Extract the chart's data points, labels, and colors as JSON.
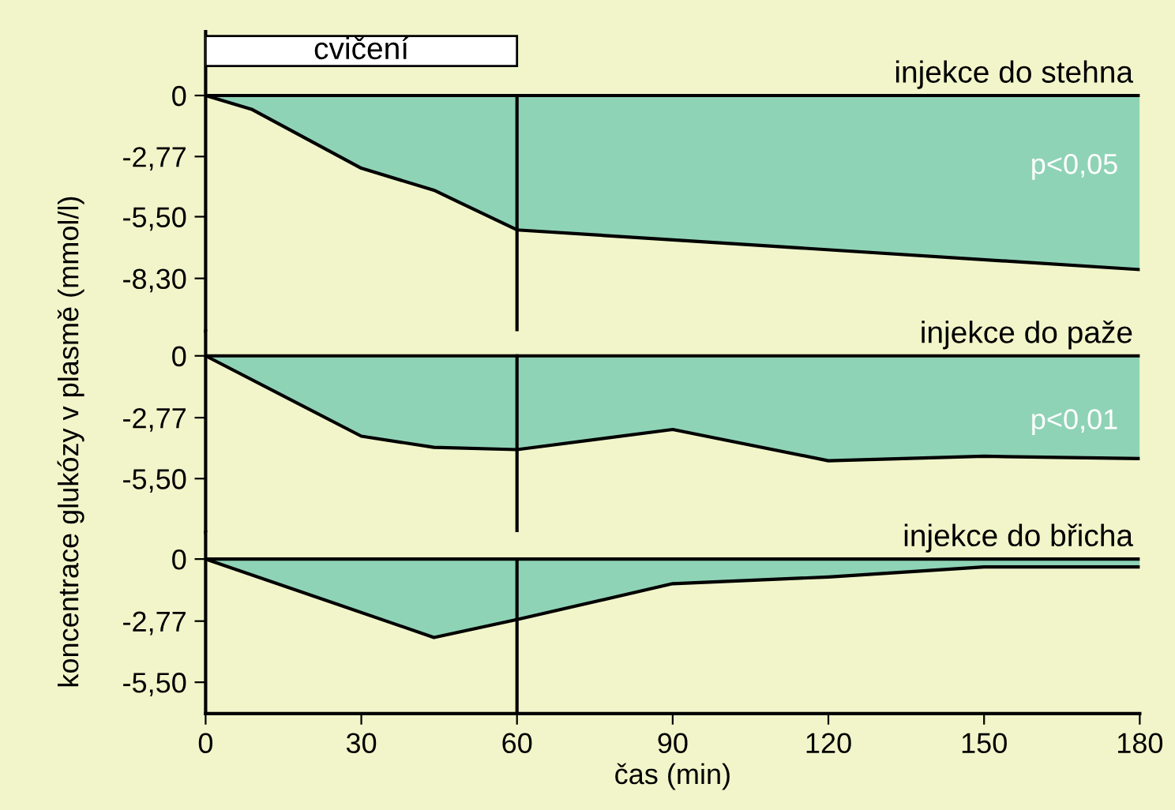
{
  "chart_data": [
    {
      "type": "area",
      "title": "injekce do stehna",
      "x": [
        0,
        9,
        30,
        44,
        60,
        180
      ],
      "series": [
        {
          "color": "#8fd3b6",
          "values": [
            0,
            -0.64,
            -3.3,
            -4.3,
            -6.1,
            -7.9
          ]
        }
      ],
      "xlim": [
        0,
        180
      ],
      "xticks": [
        0,
        30,
        60,
        90,
        120,
        150,
        180
      ],
      "ylim": [
        -10.7,
        2.9
      ],
      "yticks": [
        {
          "value": 0,
          "label": "0"
        },
        {
          "value": -2.77,
          "label": "-2,77"
        },
        {
          "value": -5.5,
          "label": "-5,50"
        },
        {
          "value": -8.3,
          "label": "-8,30"
        }
      ],
      "tick_labels": "y",
      "annotations": [
        "p<0,05"
      ],
      "bands": [
        {
          "axis": "x",
          "from": 0,
          "to": 60,
          "label": "cvičení",
          "color": "#ffffff"
        }
      ],
      "ref_lines": [
        {
          "axis": "x",
          "value": 60
        },
        {
          "axis": "y",
          "value": 0
        }
      ]
    },
    {
      "type": "area",
      "title": "injekce do paže",
      "ylabel": "koncentrace glukózy v plasmě (mmol/l)",
      "x": [
        0,
        30,
        44,
        60,
        90,
        120,
        150,
        180
      ],
      "series": [
        {
          "color": "#8fd3b6",
          "values": [
            0,
            -3.6,
            -4.1,
            -4.2,
            -3.3,
            -4.7,
            -4.5,
            -4.6
          ]
        }
      ],
      "xlim": [
        0,
        180
      ],
      "xticks": [
        0,
        30,
        60,
        90,
        120,
        150,
        180
      ],
      "ylim": [
        -7.9,
        1.1
      ],
      "yticks": [
        {
          "value": 0,
          "label": "0"
        },
        {
          "value": -2.77,
          "label": "-2,77"
        },
        {
          "value": -5.5,
          "label": "-5,50"
        }
      ],
      "tick_labels": "y",
      "annotations": [
        "p<0,01"
      ],
      "ref_lines": [
        {
          "axis": "x",
          "value": 60
        },
        {
          "axis": "y",
          "value": 0
        }
      ]
    },
    {
      "type": "area",
      "title": "injekce do břicha",
      "xlabel": "čas (min)",
      "x": [
        0,
        44,
        60,
        90,
        120,
        150,
        180
      ],
      "series": [
        {
          "color": "#8fd3b6",
          "values": [
            0,
            -3.5,
            -2.7,
            -1.1,
            -0.8,
            -0.35,
            -0.35
          ]
        }
      ],
      "xlim": [
        0,
        180
      ],
      "xticks": [
        0,
        30,
        60,
        90,
        120,
        150,
        180
      ],
      "ylim": [
        -6.9,
        1.2
      ],
      "yticks": [
        {
          "value": 0,
          "label": "0"
        },
        {
          "value": -2.77,
          "label": "-2,77"
        },
        {
          "value": -5.5,
          "label": "-5,50"
        }
      ],
      "ref_lines": [
        {
          "axis": "x",
          "value": 60
        },
        {
          "axis": "y",
          "value": 0
        }
      ]
    }
  ]
}
